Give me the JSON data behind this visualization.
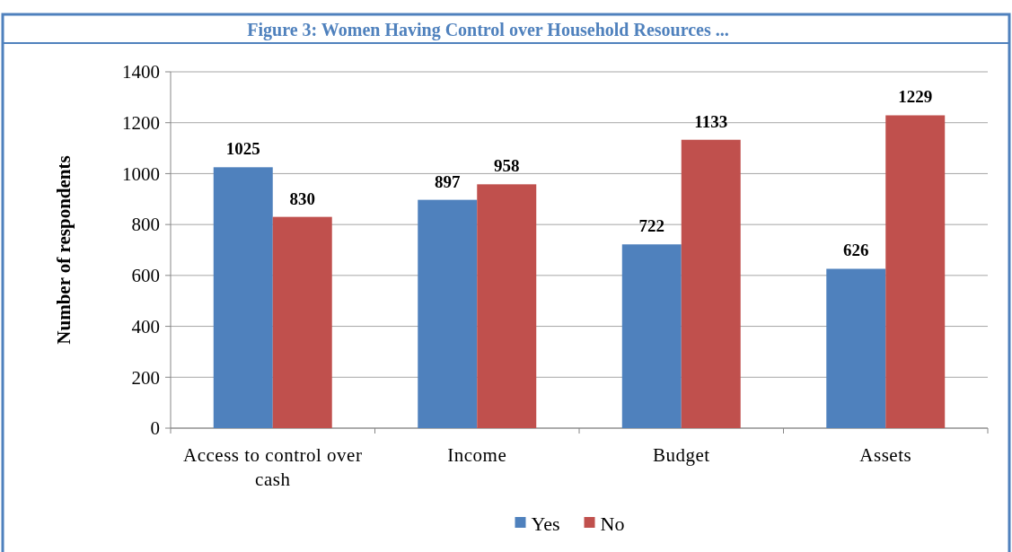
{
  "chart_data": {
    "type": "bar",
    "title": "Figure 3: Women Having Control over Household Resources ...",
    "ylabel": "Number of respondents",
    "categories": [
      "Access to control over cash",
      "Income",
      "Budget",
      "Assets"
    ],
    "series": [
      {
        "name": "Yes",
        "color": "#4f81bd",
        "values": [
          1025,
          897,
          722,
          626
        ]
      },
      {
        "name": "No",
        "color": "#c0504d",
        "values": [
          830,
          958,
          1133,
          1229
        ]
      }
    ],
    "ylim": [
      0,
      1400
    ],
    "yticks": [
      0,
      200,
      400,
      600,
      800,
      1000,
      1200,
      1400
    ],
    "grid": "y",
    "legend": "bottom",
    "data_labels": true
  }
}
